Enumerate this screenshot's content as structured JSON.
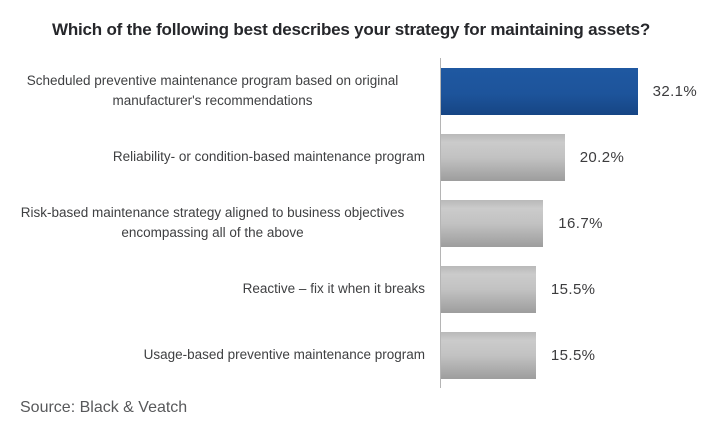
{
  "title": "Which of the following best describes your strategy for maintaining assets?",
  "source": "Source: Black & Veatch",
  "colors": {
    "page_bg": "#ffffff",
    "title_text": "#26272b",
    "label_text": "#3f4042",
    "value_text": "#3c3c3e",
    "source_text": "#58595b",
    "axis_line": "#b5b5b5",
    "bar_blue": "#1d549b",
    "bar_gray_top": "#cbcbcb",
    "bar_gray_bottom": "#9d9d9d"
  },
  "chart_data": {
    "type": "bar",
    "orientation": "horizontal",
    "title": "Which of the following best describes your strategy for maintaining assets?",
    "categories": [
      "Scheduled preventive maintenance program based on original manufacturer's recommendations",
      "Reliability- or condition-based maintenance program",
      "Risk-based maintenance strategy aligned to business objectives encompassing all of the above",
      "Reactive – fix it when it breaks",
      "Usage-based preventive maintenance program"
    ],
    "values": [
      32.1,
      20.2,
      16.7,
      15.5,
      15.5
    ],
    "value_labels": [
      "32.1%",
      "20.2%",
      "16.7%",
      "15.5%",
      "15.5%"
    ],
    "highlight_index": 0,
    "xlim": [
      0,
      40
    ],
    "grid": false,
    "legend": false,
    "value_label_position": "right-of-bar",
    "source": "Source: Black & Veatch"
  }
}
